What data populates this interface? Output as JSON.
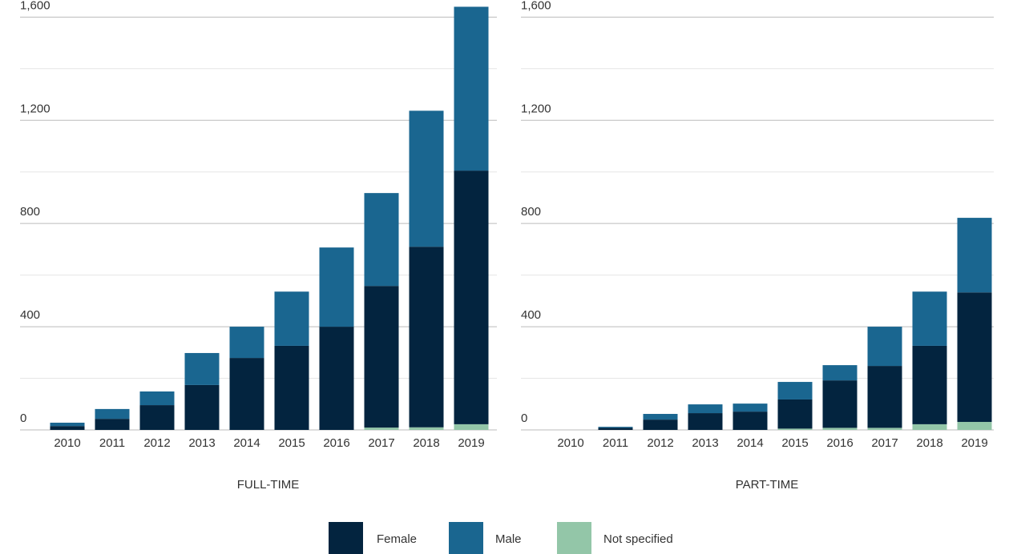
{
  "chart_data": [
    {
      "type": "bar",
      "stacked": true,
      "xlabel": "FULL-TIME",
      "categories": [
        "2010",
        "2011",
        "2012",
        "2013",
        "2014",
        "2015",
        "2016",
        "2017",
        "2018",
        "2019"
      ],
      "series": [
        {
          "name": "Female",
          "color": "#03243f",
          "values": [
            15,
            43,
            96,
            174,
            279,
            326,
            400,
            549,
            700,
            983
          ]
        },
        {
          "name": "Male",
          "color": "#1a6690",
          "values": [
            13,
            38,
            53,
            124,
            121,
            210,
            307,
            360,
            527,
            635
          ]
        },
        {
          "name": "Not specified",
          "color": "#93c6a8",
          "values": [
            0,
            0,
            0,
            0,
            0,
            0,
            0,
            9,
            10,
            22
          ]
        }
      ],
      "ylim": [
        0,
        1660
      ],
      "yticks": [
        0,
        400,
        800,
        {
          "value": 1200,
          "label": "1,200"
        },
        {
          "value": 1600,
          "label": "1,600"
        }
      ],
      "minor_yticks": [
        200,
        600,
        1000,
        1400
      ],
      "grid": true
    },
    {
      "type": "bar",
      "stacked": true,
      "xlabel": "PART-TIME",
      "categories": [
        "2010",
        "2011",
        "2012",
        "2013",
        "2014",
        "2015",
        "2016",
        "2017",
        "2018",
        "2019"
      ],
      "series": [
        {
          "name": "Female",
          "color": "#03243f",
          "values": [
            0,
            8,
            40,
            65,
            71,
            113,
            184,
            240,
            304,
            502
          ]
        },
        {
          "name": "Male",
          "color": "#1a6690",
          "values": [
            0,
            4,
            22,
            34,
            31,
            68,
            59,
            152,
            210,
            289
          ]
        },
        {
          "name": "Not specified",
          "color": "#93c6a8",
          "values": [
            0,
            0,
            0,
            0,
            0,
            5,
            8,
            8,
            22,
            31
          ]
        }
      ],
      "ylim": [
        0,
        1660
      ],
      "yticks": [
        0,
        400,
        800,
        {
          "value": 1200,
          "label": "1,200"
        },
        {
          "value": 1600,
          "label": "1,600"
        }
      ],
      "minor_yticks": [
        200,
        600,
        1000,
        1400
      ],
      "grid": true
    }
  ]
}
